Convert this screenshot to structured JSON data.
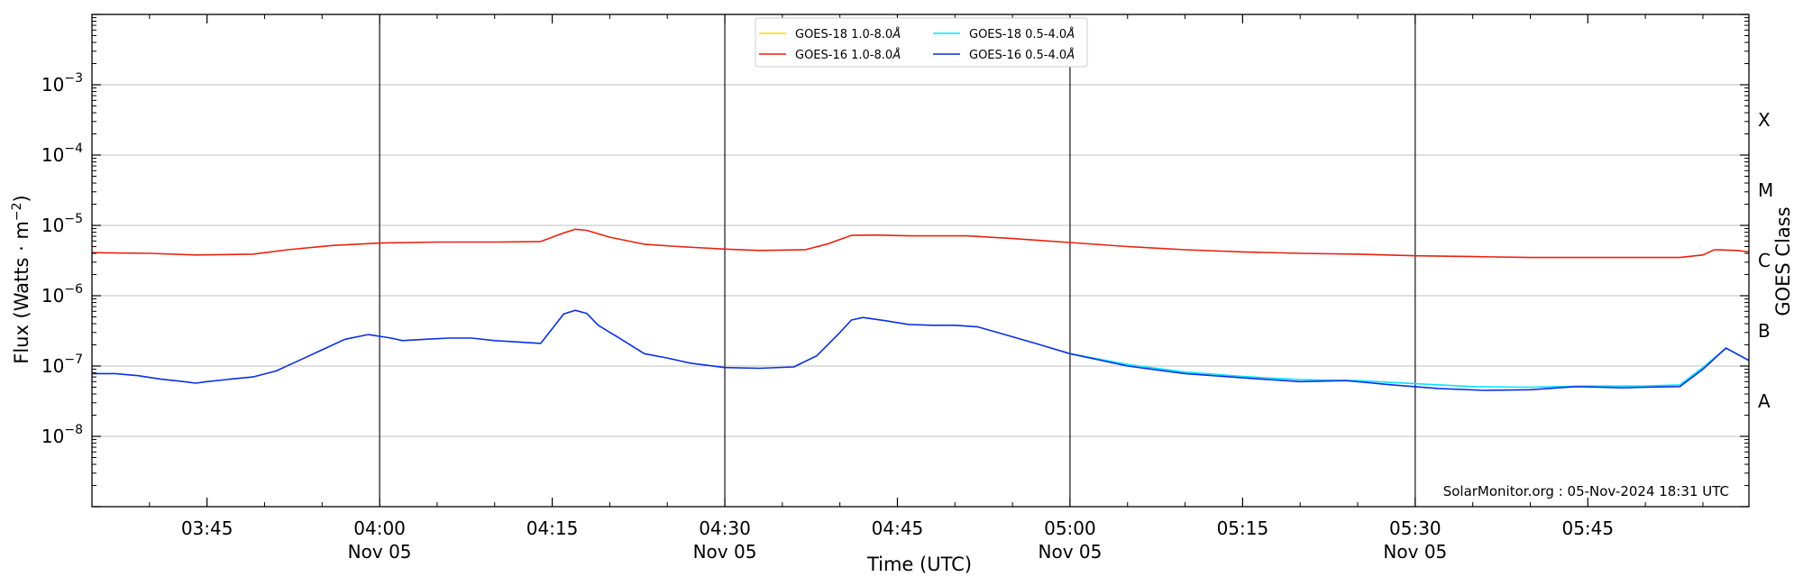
{
  "chart_data": {
    "type": "line",
    "title": "",
    "xlabel": "Time (UTC)",
    "ylabel": "Flux (Watts · m",
    "ylabel_sup": "−2",
    "ylabel_close": ")",
    "right_label": "GOES Class",
    "y_scale": "log",
    "ylim": [
      1e-09,
      0.01
    ],
    "xlim": [
      "2024-11-05T03:35",
      "2024-11-05T05:59"
    ],
    "grid": "horizontal at decades",
    "legend_position": "top-center",
    "y_ticks": [
      {
        "value": 1e-08,
        "base": "10",
        "exp": "−8"
      },
      {
        "value": 1e-07,
        "base": "10",
        "exp": "−7"
      },
      {
        "value": 1e-06,
        "base": "10",
        "exp": "−6"
      },
      {
        "value": 1e-05,
        "base": "10",
        "exp": "−5"
      },
      {
        "value": 0.0001,
        "base": "10",
        "exp": "−4"
      },
      {
        "value": 0.001,
        "base": "10",
        "exp": "−3"
      }
    ],
    "x_ticks": [
      {
        "time": "03:45",
        "label": "03:45",
        "sub": ""
      },
      {
        "time": "04:00",
        "label": "04:00",
        "sub": "Nov 05"
      },
      {
        "time": "04:15",
        "label": "04:15",
        "sub": ""
      },
      {
        "time": "04:30",
        "label": "04:30",
        "sub": "Nov 05"
      },
      {
        "time": "04:45",
        "label": "04:45",
        "sub": ""
      },
      {
        "time": "05:00",
        "label": "05:00",
        "sub": "Nov 05"
      },
      {
        "time": "05:15",
        "label": "05:15",
        "sub": ""
      },
      {
        "time": "05:30",
        "label": "05:30",
        "sub": "Nov 05"
      },
      {
        "time": "05:45",
        "label": "05:45",
        "sub": ""
      }
    ],
    "vertical_lines": [
      "04:00",
      "04:30",
      "05:00",
      "05:30"
    ],
    "goes_classes": [
      {
        "label": "A",
        "value": 3.16e-08
      },
      {
        "label": "B",
        "value": 3.16e-07
      },
      {
        "label": "C",
        "value": 3.16e-06
      },
      {
        "label": "M",
        "value": 3.16e-05
      },
      {
        "label": "X",
        "value": 0.000316
      }
    ],
    "credit": "SolarMonitor.org : 05-Nov-2024 18:31 UTC",
    "series": [
      {
        "name": "GOES-18 1.0-8.0",
        "name_unit": "Å",
        "color": "#ffd700",
        "points": []
      },
      {
        "name": "GOES-18 0.5-4.0",
        "name_unit": "Å",
        "color": "#00e5ff",
        "points": [
          [
            "05:00",
            1.5e-07
          ],
          [
            "05:05",
            1.05e-07
          ],
          [
            "05:10",
            8.2e-08
          ],
          [
            "05:15",
            7.1e-08
          ],
          [
            "05:20",
            6.4e-08
          ],
          [
            "05:25",
            6.2e-08
          ],
          [
            "05:30",
            5.6e-08
          ],
          [
            "05:35",
            5.1e-08
          ],
          [
            "05:40",
            5e-08
          ],
          [
            "05:45",
            5.2e-08
          ],
          [
            "05:50",
            5.2e-08
          ],
          [
            "05:53",
            5.4e-08
          ],
          [
            "05:55",
            9.5e-08
          ],
          [
            "05:57",
            1.8e-07
          ],
          [
            "05:59",
            1.2e-07
          ]
        ]
      },
      {
        "name": "GOES-16 1.0-8.0",
        "name_unit": "Å",
        "color": "#e8220f",
        "points": [
          [
            "03:35",
            4.1e-06
          ],
          [
            "03:40",
            4e-06
          ],
          [
            "03:44",
            3.8e-06
          ],
          [
            "03:49",
            3.9e-06
          ],
          [
            "03:52",
            4.5e-06
          ],
          [
            "03:56",
            5.2e-06
          ],
          [
            "04:00",
            5.6e-06
          ],
          [
            "04:05",
            5.8e-06
          ],
          [
            "04:10",
            5.8e-06
          ],
          [
            "04:14",
            5.9e-06
          ],
          [
            "04:16",
            7.8e-06
          ],
          [
            "04:17",
            8.8e-06
          ],
          [
            "04:18",
            8.5e-06
          ],
          [
            "04:20",
            6.8e-06
          ],
          [
            "04:23",
            5.4e-06
          ],
          [
            "04:26",
            5e-06
          ],
          [
            "04:30",
            4.6e-06
          ],
          [
            "04:33",
            4.4e-06
          ],
          [
            "04:37",
            4.5e-06
          ],
          [
            "04:39",
            5.5e-06
          ],
          [
            "04:41",
            7.2e-06
          ],
          [
            "04:43",
            7.3e-06
          ],
          [
            "04:46",
            7.1e-06
          ],
          [
            "04:51",
            7.1e-06
          ],
          [
            "04:55",
            6.5e-06
          ],
          [
            "05:00",
            5.7e-06
          ],
          [
            "05:05",
            5e-06
          ],
          [
            "05:10",
            4.5e-06
          ],
          [
            "05:15",
            4.2e-06
          ],
          [
            "05:20",
            4e-06
          ],
          [
            "05:25",
            3.9e-06
          ],
          [
            "05:30",
            3.7e-06
          ],
          [
            "05:35",
            3.6e-06
          ],
          [
            "05:40",
            3.5e-06
          ],
          [
            "05:45",
            3.5e-06
          ],
          [
            "05:50",
            3.5e-06
          ],
          [
            "05:53",
            3.5e-06
          ],
          [
            "05:55",
            3.8e-06
          ],
          [
            "05:56",
            4.5e-06
          ],
          [
            "05:58",
            4.4e-06
          ],
          [
            "05:59",
            4.2e-06
          ]
        ]
      },
      {
        "name": "GOES-16 0.5-4.0",
        "name_unit": "Å",
        "color": "#0a2fe0",
        "points": [
          [
            "03:35",
            7.8e-08
          ],
          [
            "03:37",
            7.8e-08
          ],
          [
            "03:39",
            7.3e-08
          ],
          [
            "03:41",
            6.5e-08
          ],
          [
            "03:43",
            6e-08
          ],
          [
            "03:44",
            5.7e-08
          ],
          [
            "03:45",
            6e-08
          ],
          [
            "03:47",
            6.5e-08
          ],
          [
            "03:49",
            7e-08
          ],
          [
            "03:51",
            8.5e-08
          ],
          [
            "03:53",
            1.2e-07
          ],
          [
            "03:55",
            1.7e-07
          ],
          [
            "03:57",
            2.4e-07
          ],
          [
            "03:59",
            2.8e-07
          ],
          [
            "04:01",
            2.5e-07
          ],
          [
            "04:02",
            2.3e-07
          ],
          [
            "04:04",
            2.4e-07
          ],
          [
            "04:06",
            2.5e-07
          ],
          [
            "04:08",
            2.5e-07
          ],
          [
            "04:10",
            2.3e-07
          ],
          [
            "04:12",
            2.2e-07
          ],
          [
            "04:14",
            2.1e-07
          ],
          [
            "04:16",
            5.5e-07
          ],
          [
            "04:17",
            6.2e-07
          ],
          [
            "04:18",
            5.6e-07
          ],
          [
            "04:19",
            3.8e-07
          ],
          [
            "04:21",
            2.4e-07
          ],
          [
            "04:23",
            1.5e-07
          ],
          [
            "04:25",
            1.3e-07
          ],
          [
            "04:27",
            1.1e-07
          ],
          [
            "04:30",
            9.5e-08
          ],
          [
            "04:33",
            9.3e-08
          ],
          [
            "04:36",
            9.7e-08
          ],
          [
            "04:38",
            1.4e-07
          ],
          [
            "04:40",
            3e-07
          ],
          [
            "04:41",
            4.5e-07
          ],
          [
            "04:42",
            4.9e-07
          ],
          [
            "04:44",
            4.4e-07
          ],
          [
            "04:46",
            3.9e-07
          ],
          [
            "04:48",
            3.8e-07
          ],
          [
            "04:50",
            3.8e-07
          ],
          [
            "04:52",
            3.6e-07
          ],
          [
            "04:54",
            2.9e-07
          ],
          [
            "04:57",
            2.1e-07
          ],
          [
            "05:00",
            1.5e-07
          ],
          [
            "05:05",
            1e-07
          ],
          [
            "05:10",
            7.8e-08
          ],
          [
            "05:15",
            6.8e-08
          ],
          [
            "05:20",
            6e-08
          ],
          [
            "05:24",
            6.2e-08
          ],
          [
            "05:28",
            5.4e-08
          ],
          [
            "05:32",
            4.8e-08
          ],
          [
            "05:36",
            4.5e-08
          ],
          [
            "05:40",
            4.6e-08
          ],
          [
            "05:44",
            5.1e-08
          ],
          [
            "05:48",
            4.9e-08
          ],
          [
            "05:50",
            5e-08
          ],
          [
            "05:53",
            5.1e-08
          ],
          [
            "05:55",
            9e-08
          ],
          [
            "05:57",
            1.8e-07
          ],
          [
            "05:59",
            1.2e-07
          ]
        ]
      }
    ]
  }
}
